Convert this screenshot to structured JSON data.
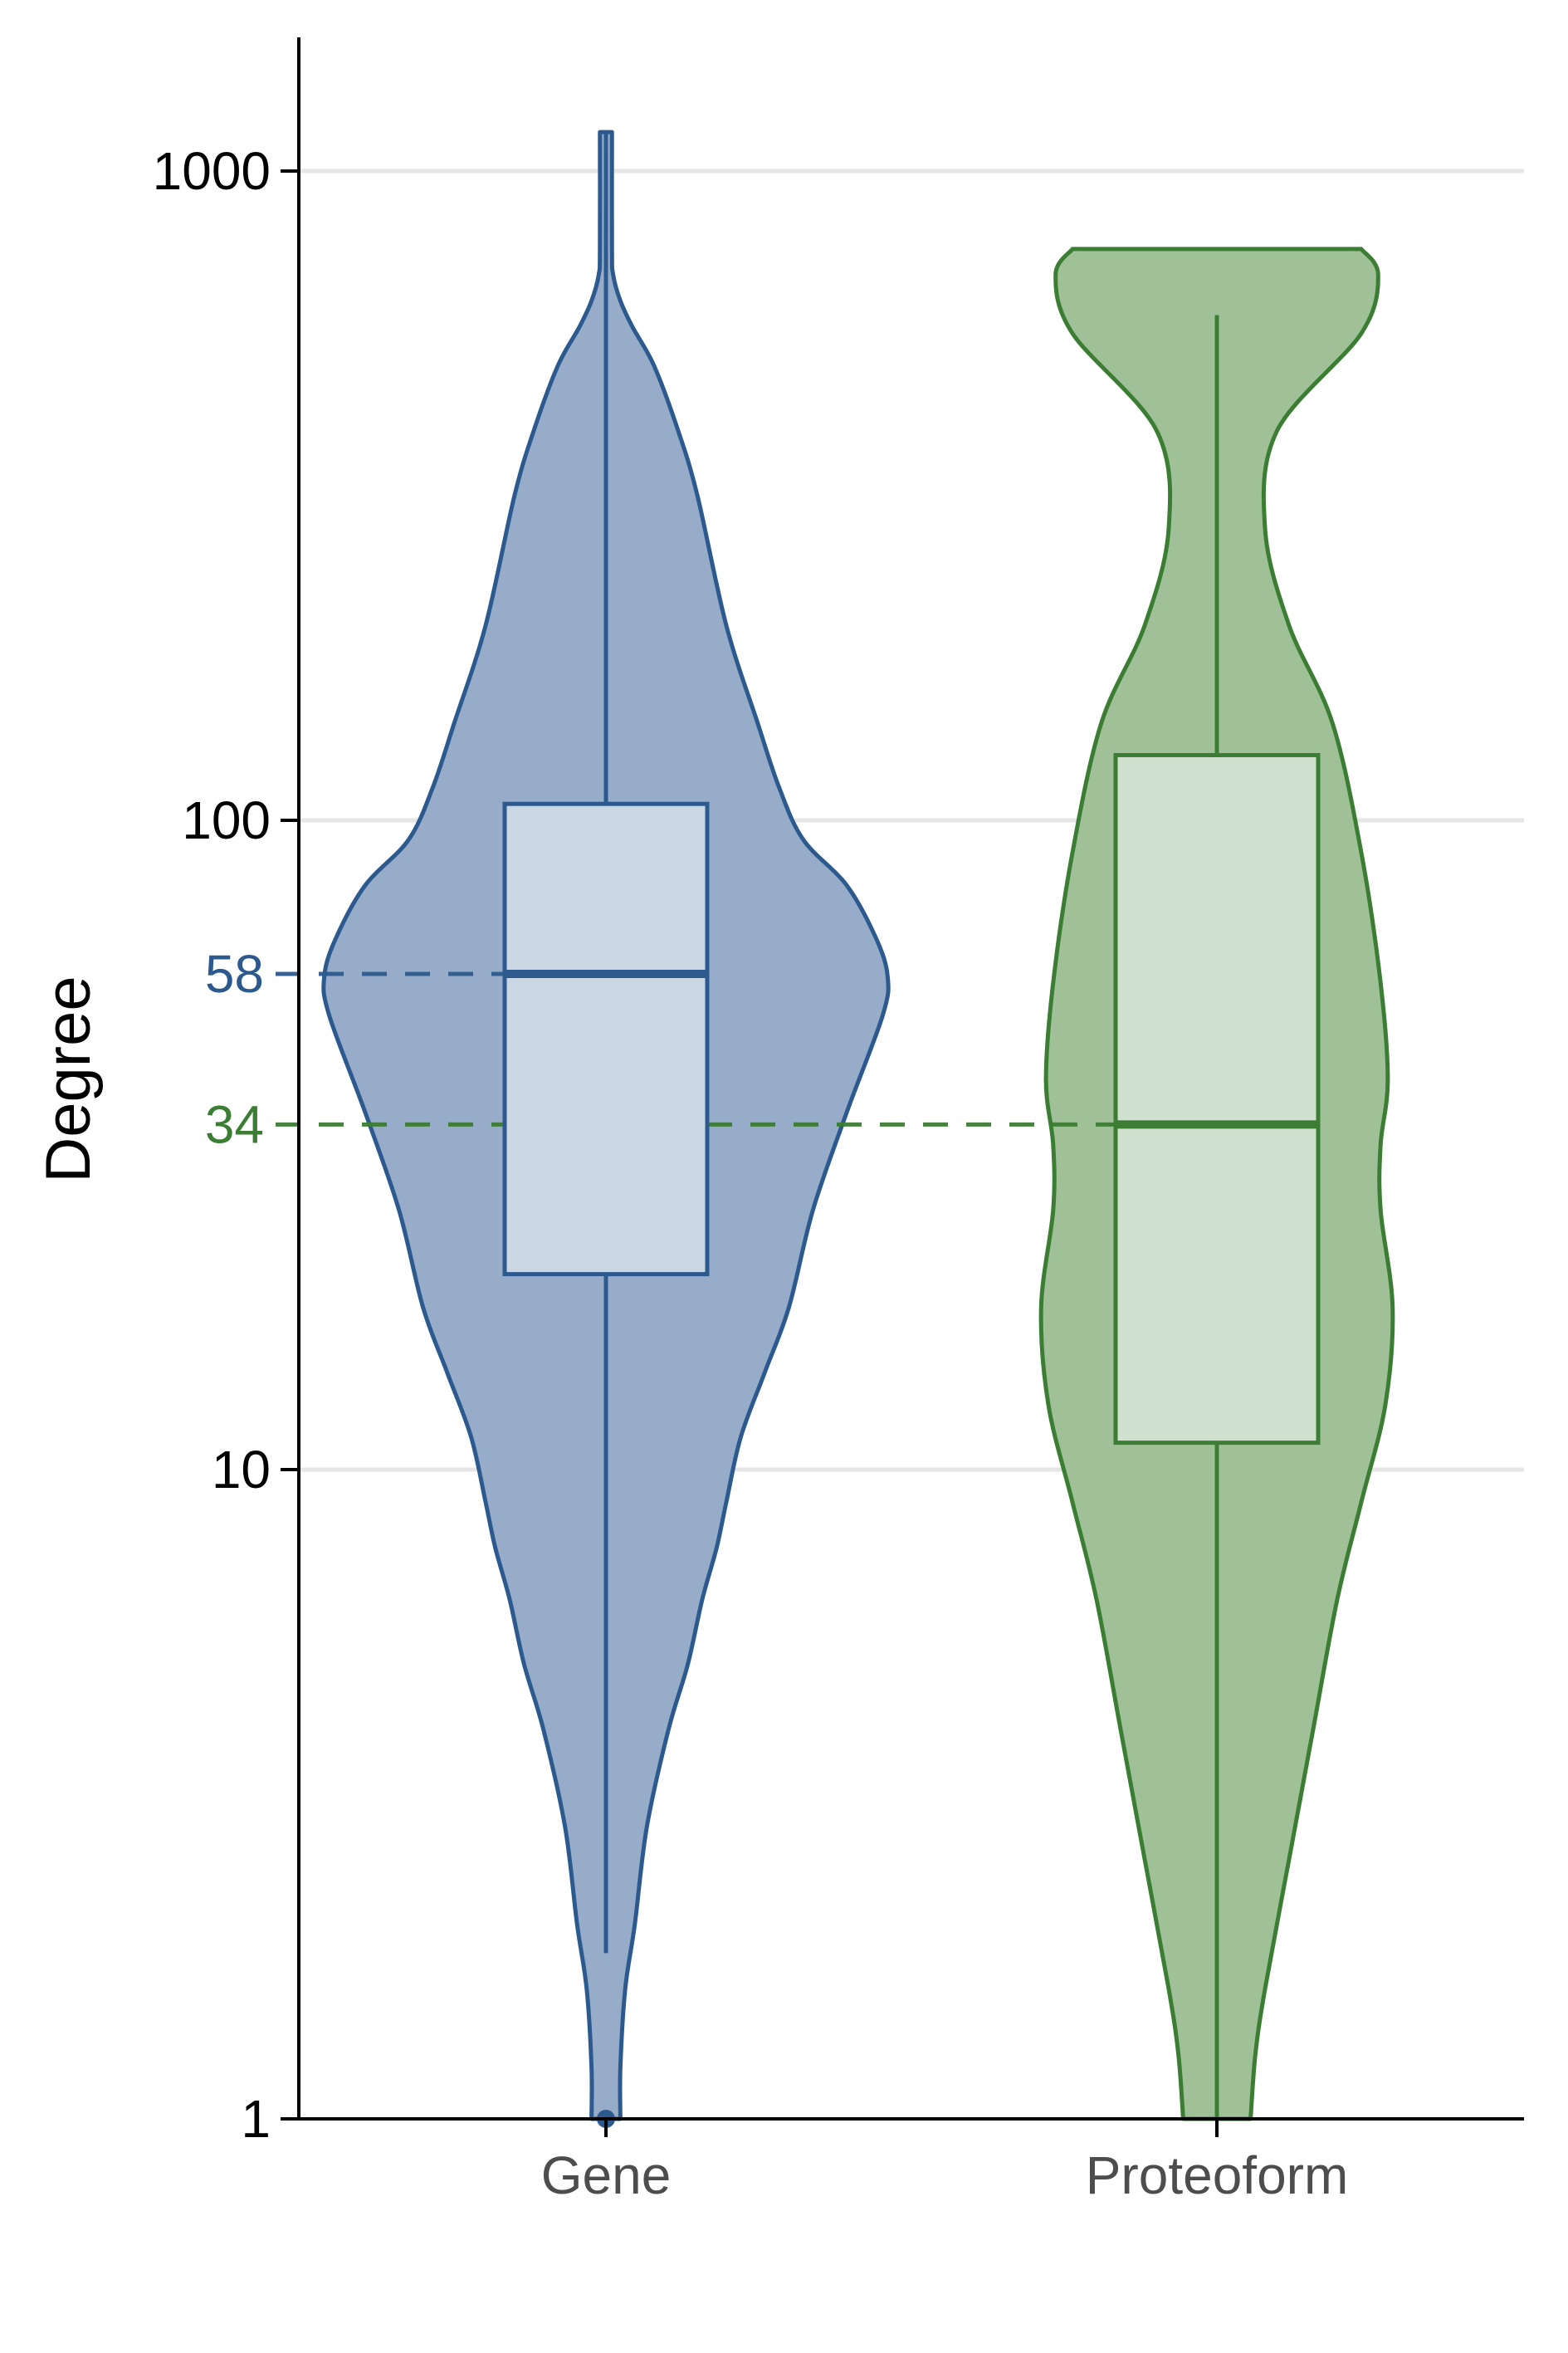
{
  "chart_data": {
    "type": "violin",
    "title": "",
    "xlabel": "",
    "ylabel": "Degree",
    "yscale": "log10",
    "ylim": [
      1,
      1400
    ],
    "yticks": [
      {
        "value": 1,
        "label": "1"
      },
      {
        "value": 10,
        "label": "10"
      },
      {
        "value": 100,
        "label": "100"
      },
      {
        "value": 1000,
        "label": "1000"
      }
    ],
    "grid": {
      "horizontal": true,
      "vertical": false
    },
    "categories": [
      "Gene",
      "Proteoform"
    ],
    "series": [
      {
        "category": "Gene",
        "color": "#2d5a8e",
        "fill": "#97acc8",
        "box_fill": "#cbd6e3",
        "box": {
          "min": 1.8,
          "q1": 20,
          "median": 58,
          "q3": 106,
          "max": 1150
        },
        "outliers": [
          1
        ],
        "median_label": "58",
        "density": {
          "log_y": [
            0,
            0.08,
            0.2,
            0.3,
            0.45,
            0.6,
            0.7,
            0.8,
            0.88,
            0.95,
            1.05,
            1.15,
            1.25,
            1.4,
            1.55,
            1.7,
            1.76,
            1.82,
            1.9,
            1.97,
            2.05,
            2.15,
            2.3,
            2.5,
            2.6,
            2.7,
            2.76,
            2.8,
            2.84,
            2.88,
            3.06
          ],
          "width": [
            0.06,
            0.06,
            0.08,
            0.12,
            0.17,
            0.26,
            0.34,
            0.4,
            0.46,
            0.5,
            0.56,
            0.66,
            0.76,
            0.86,
            1.0,
            1.15,
            1.17,
            1.12,
            1.0,
            0.82,
            0.72,
            0.63,
            0.5,
            0.38,
            0.3,
            0.2,
            0.11,
            0.06,
            0.03,
            0.025,
            0.025
          ]
        }
      },
      {
        "category": "Proteoform",
        "color": "#3c7d34",
        "fill": "#a0c197",
        "box_fill": "#d0e2cf",
        "box": {
          "min": 1,
          "q1": 11,
          "median": 34,
          "q3": 126,
          "max": 600
        },
        "outliers": [],
        "median_label": "34",
        "density": {
          "log_y": [
            0,
            0.1,
            0.2,
            0.4,
            0.6,
            0.8,
            0.95,
            1.1,
            1.25,
            1.4,
            1.5,
            1.6,
            1.75,
            1.95,
            2.15,
            2.3,
            2.45,
            2.6,
            2.75,
            2.84,
            2.88
          ],
          "width": [
            0.14,
            0.16,
            0.2,
            0.3,
            0.4,
            0.5,
            0.6,
            0.7,
            0.73,
            0.68,
            0.68,
            0.71,
            0.68,
            0.6,
            0.48,
            0.3,
            0.2,
            0.25,
            0.6,
            0.67,
            0.6
          ]
        }
      }
    ]
  }
}
